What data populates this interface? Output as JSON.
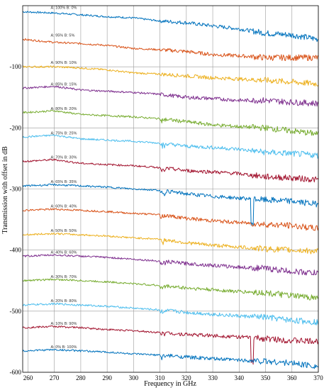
{
  "chart_data": {
    "type": "line",
    "xlabel": "Frequency in GHz",
    "ylabel": "Transmission with offset in dB",
    "xlim": [
      258,
      370
    ],
    "ylim": [
      -600,
      0
    ],
    "x_ticks": [
      260,
      270,
      280,
      290,
      300,
      310,
      320,
      330,
      340,
      350,
      360,
      370
    ],
    "y_ticks": [
      -100,
      -200,
      -300,
      -400,
      -500,
      -600
    ],
    "grid": true,
    "series": [
      {
        "name": "A: 100%  B: 0%",
        "color": "#0072BD",
        "offset": -10,
        "x": [
          258,
          270,
          280,
          290,
          300,
          310,
          320,
          330,
          340,
          350,
          360,
          370
        ],
        "y": [
          -10,
          -12,
          -15,
          -18,
          -20,
          -25,
          -28,
          -33,
          -38,
          -45,
          -48,
          -55
        ]
      },
      {
        "name": "A: 95%  B: 5%",
        "color": "#D95319",
        "offset": -55,
        "x": [
          258,
          270,
          280,
          290,
          300,
          310,
          320,
          330,
          340,
          350,
          360,
          370
        ],
        "y": [
          -55,
          -60,
          -62,
          -65,
          -70,
          -72,
          -75,
          -80,
          -82,
          -85,
          -85,
          -85
        ]
      },
      {
        "name": "A: 90%  B: 10%",
        "color": "#EDB120",
        "offset": -100,
        "x": [
          258,
          270,
          280,
          290,
          300,
          310,
          320,
          330,
          340,
          350,
          360,
          370
        ],
        "y": [
          -100,
          -100,
          -102,
          -105,
          -110,
          -112,
          -115,
          -118,
          -120,
          -122,
          -125,
          -128
        ]
      },
      {
        "name": "A: 85%  B: 15%",
        "color": "#7E2F8E",
        "offset": -135,
        "x": [
          258,
          270,
          280,
          290,
          300,
          310,
          320,
          330,
          340,
          350,
          360,
          370
        ],
        "y": [
          -135,
          -132,
          -138,
          -140,
          -142,
          -145,
          -150,
          -152,
          -155,
          -155,
          -158,
          -160
        ]
      },
      {
        "name": "A: 80%  B: 20%",
        "color": "#77AC30",
        "offset": -175,
        "x": [
          258,
          270,
          280,
          290,
          300,
          310,
          320,
          330,
          340,
          350,
          360,
          370
        ],
        "y": [
          -175,
          -172,
          -178,
          -180,
          -182,
          -185,
          -190,
          -195,
          -198,
          -200,
          -205,
          -210
        ]
      },
      {
        "name": "A: 75%  B: 25%",
        "color": "#4DBEEE",
        "offset": -215,
        "x": [
          258,
          270,
          280,
          290,
          300,
          310,
          320,
          330,
          340,
          350,
          360,
          370
        ],
        "y": [
          -215,
          -212,
          -218,
          -220,
          -222,
          -225,
          -230,
          -232,
          -235,
          -240,
          -242,
          -245
        ]
      },
      {
        "name": "A: 70%  B: 30%",
        "color": "#A2142F",
        "offset": -255,
        "x": [
          258,
          270,
          280,
          290,
          300,
          310,
          320,
          330,
          340,
          350,
          360,
          370
        ],
        "y": [
          -255,
          -252,
          -258,
          -260,
          -262,
          -265,
          -270,
          -272,
          -275,
          -280,
          -282,
          -285
        ]
      },
      {
        "name": "A: 65%  B: 35%",
        "color": "#0072BD",
        "offset": -295,
        "x": [
          258,
          270,
          280,
          290,
          300,
          310,
          320,
          330,
          340,
          350,
          360,
          370
        ],
        "y": [
          -295,
          -293,
          -295,
          -297,
          -300,
          -302,
          -308,
          -312,
          -315,
          -318,
          -320,
          -325
        ]
      },
      {
        "name": "A: 60%  B: 40%",
        "color": "#D95319",
        "offset": -335,
        "x": [
          258,
          270,
          280,
          290,
          300,
          310,
          320,
          330,
          340,
          350,
          360,
          370
        ],
        "y": [
          -335,
          -333,
          -335,
          -337,
          -340,
          -342,
          -348,
          -352,
          -355,
          -358,
          -360,
          -365
        ]
      },
      {
        "name": "A: 50%  B: 50%",
        "color": "#EDB120",
        "offset": -375,
        "x": [
          258,
          270,
          280,
          290,
          300,
          310,
          320,
          330,
          340,
          350,
          360,
          370
        ],
        "y": [
          -375,
          -373,
          -375,
          -377,
          -380,
          -382,
          -388,
          -392,
          -395,
          -398,
          -400,
          -402
        ]
      },
      {
        "name": "A: 40%  B: 60%",
        "color": "#7E2F8E",
        "offset": -410,
        "x": [
          258,
          270,
          280,
          290,
          300,
          310,
          320,
          330,
          340,
          350,
          360,
          370
        ],
        "y": [
          -410,
          -408,
          -410,
          -412,
          -415,
          -418,
          -422,
          -425,
          -428,
          -430,
          -435,
          -438
        ]
      },
      {
        "name": "A: 30%  B: 70%",
        "color": "#77AC30",
        "offset": -450,
        "x": [
          258,
          270,
          280,
          290,
          300,
          310,
          320,
          330,
          340,
          350,
          360,
          370
        ],
        "y": [
          -450,
          -448,
          -450,
          -452,
          -455,
          -458,
          -462,
          -465,
          -468,
          -470,
          -475,
          -478
        ]
      },
      {
        "name": "A: 20%  B: 80%",
        "color": "#4DBEEE",
        "offset": -490,
        "x": [
          258,
          270,
          280,
          290,
          300,
          310,
          320,
          330,
          340,
          350,
          360,
          370
        ],
        "y": [
          -490,
          -488,
          -490,
          -492,
          -495,
          -498,
          -502,
          -505,
          -508,
          -510,
          -515,
          -518
        ]
      },
      {
        "name": "A: 10%  B: 90%",
        "color": "#A2142F",
        "offset": -527,
        "x": [
          258,
          270,
          280,
          290,
          300,
          310,
          320,
          330,
          340,
          350,
          360,
          370
        ],
        "y": [
          -527,
          -525,
          -527,
          -530,
          -532,
          -535,
          -538,
          -540,
          -542,
          -545,
          -548,
          -550
        ]
      },
      {
        "name": "A: 0%  B: 100%",
        "color": "#0072BD",
        "offset": -565,
        "x": [
          258,
          270,
          280,
          290,
          300,
          310,
          320,
          330,
          340,
          350,
          360,
          370
        ],
        "y": [
          -565,
          -563,
          -565,
          -567,
          -570,
          -572,
          -575,
          -578,
          -580,
          -582,
          -585,
          -590
        ]
      }
    ]
  }
}
